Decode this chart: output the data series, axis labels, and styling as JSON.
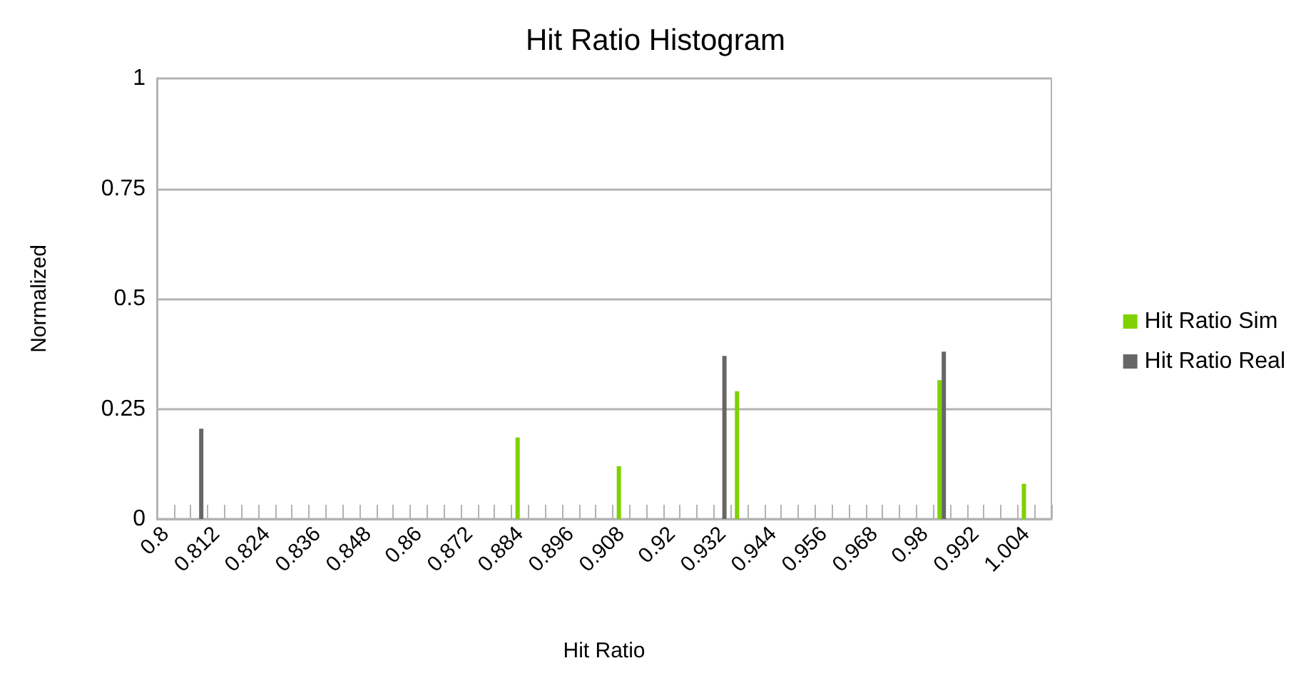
{
  "chart_data": {
    "type": "bar",
    "title": "Hit Ratio Histogram",
    "xlabel": "Hit Ratio",
    "ylabel": "Normalized",
    "categories": [
      "0.8",
      null,
      null,
      "0.812",
      null,
      null,
      "0.824",
      null,
      null,
      "0.836",
      null,
      null,
      "0.848",
      null,
      null,
      "0.86",
      null,
      null,
      "0.872",
      null,
      null,
      "0.884",
      null,
      null,
      "0.896",
      null,
      null,
      "0.908",
      null,
      null,
      "0.92",
      null,
      null,
      "0.932",
      null,
      null,
      "0.944",
      null,
      null,
      "0.956",
      null,
      null,
      "0.968",
      null,
      null,
      "0.98",
      null,
      null,
      "0.992",
      null,
      null,
      "1.004",
      null
    ],
    "series": [
      {
        "name": "Hit Ratio Sim",
        "color": "#7fd100",
        "values": [
          null,
          null,
          null,
          null,
          null,
          null,
          null,
          null,
          null,
          null,
          null,
          null,
          null,
          null,
          null,
          null,
          null,
          null,
          null,
          null,
          null,
          0.185,
          null,
          null,
          null,
          null,
          null,
          0.12,
          null,
          null,
          null,
          null,
          null,
          null,
          0.29,
          null,
          null,
          null,
          null,
          null,
          null,
          null,
          null,
          null,
          null,
          null,
          0.315,
          null,
          null,
          null,
          null,
          0.08,
          null
        ]
      },
      {
        "name": "Hit Ratio Real",
        "color": "#666666",
        "values": [
          null,
          null,
          0.205,
          null,
          null,
          null,
          null,
          null,
          null,
          null,
          null,
          null,
          null,
          null,
          null,
          null,
          null,
          null,
          null,
          null,
          null,
          null,
          null,
          null,
          null,
          null,
          null,
          null,
          null,
          null,
          null,
          null,
          null,
          0.37,
          null,
          null,
          null,
          null,
          null,
          null,
          null,
          null,
          null,
          null,
          null,
          null,
          0.38,
          null,
          null,
          null,
          null,
          null,
          null
        ]
      }
    ],
    "ylim": [
      0,
      1
    ],
    "yticks": [
      0,
      0.25,
      0.5,
      0.75,
      1
    ],
    "grid": "y",
    "legend": "right"
  }
}
